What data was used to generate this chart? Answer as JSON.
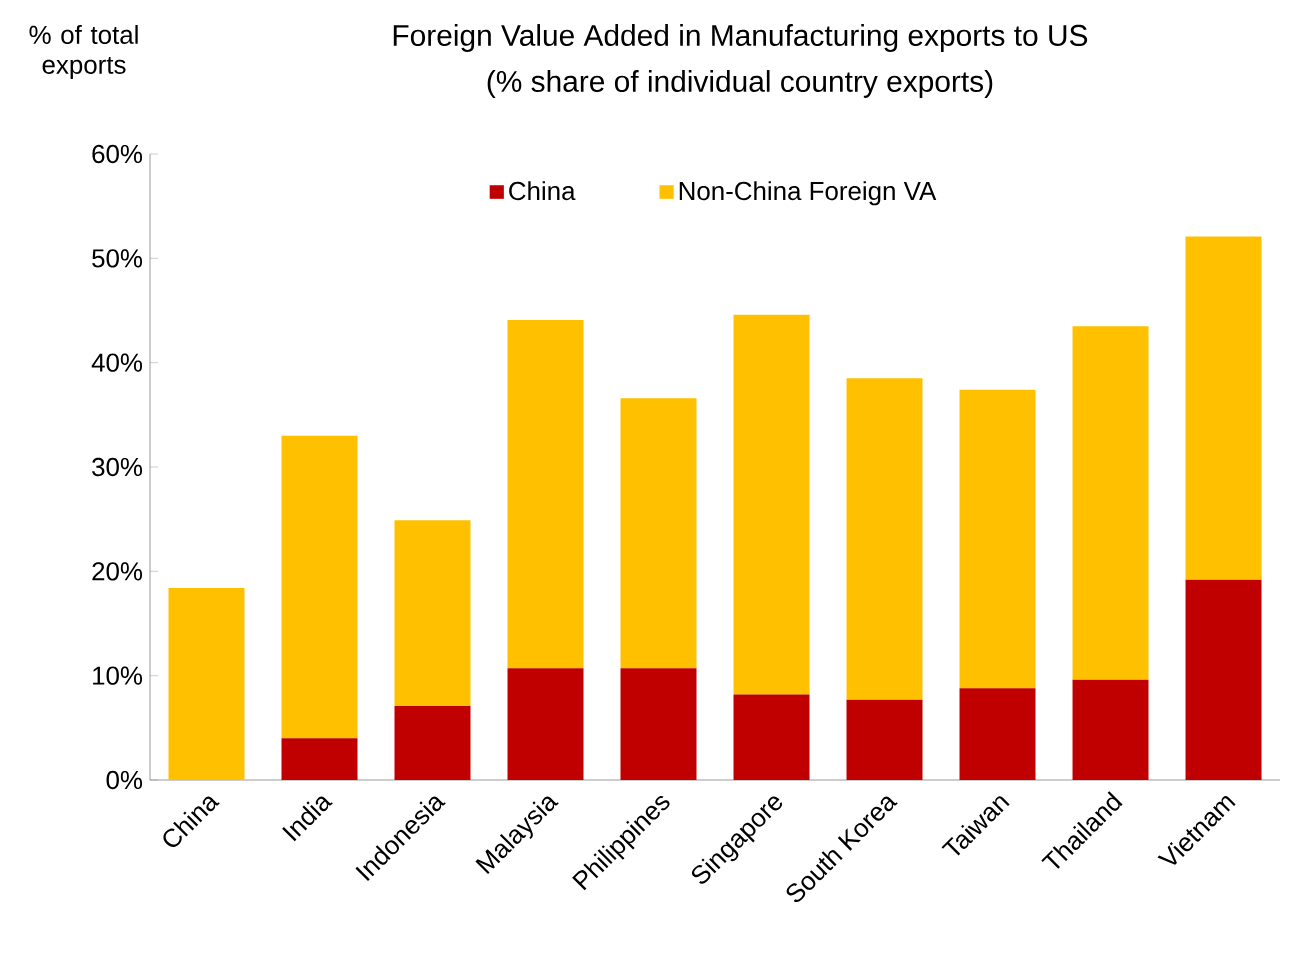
{
  "chart_data": {
    "type": "bar",
    "title": "Foreign Value Added in Manufacturing exports to US",
    "subtitle": "(% share of individual country exports)",
    "ylabel": "% of total exports",
    "categories": [
      "China",
      "India",
      "Indonesia",
      "Malaysia",
      "Philippines",
      "Singapore",
      "South Korea",
      "Taiwan",
      "Thailand",
      "Vietnam"
    ],
    "series": [
      {
        "name": "China",
        "color": "#c00000",
        "values": [
          0,
          4.0,
          7.1,
          10.7,
          10.7,
          8.2,
          7.7,
          8.8,
          9.6,
          19.2
        ]
      },
      {
        "name": "Non-China Foreign VA",
        "color": "#ffc000",
        "values": [
          18.4,
          29.0,
          17.8,
          33.4,
          25.9,
          36.4,
          30.8,
          28.6,
          33.9,
          32.9
        ]
      }
    ],
    "stacked": true,
    "ylim": [
      0,
      60
    ],
    "yticks": [
      {
        "value": 0,
        "label": "0%"
      },
      {
        "value": 10,
        "label": "10%"
      },
      {
        "value": 20,
        "label": "20%"
      },
      {
        "value": 30,
        "label": "30%"
      },
      {
        "value": 40,
        "label": "40%"
      },
      {
        "value": 50,
        "label": "50%"
      },
      {
        "value": 60,
        "label": "60%"
      }
    ],
    "legend": "top"
  }
}
